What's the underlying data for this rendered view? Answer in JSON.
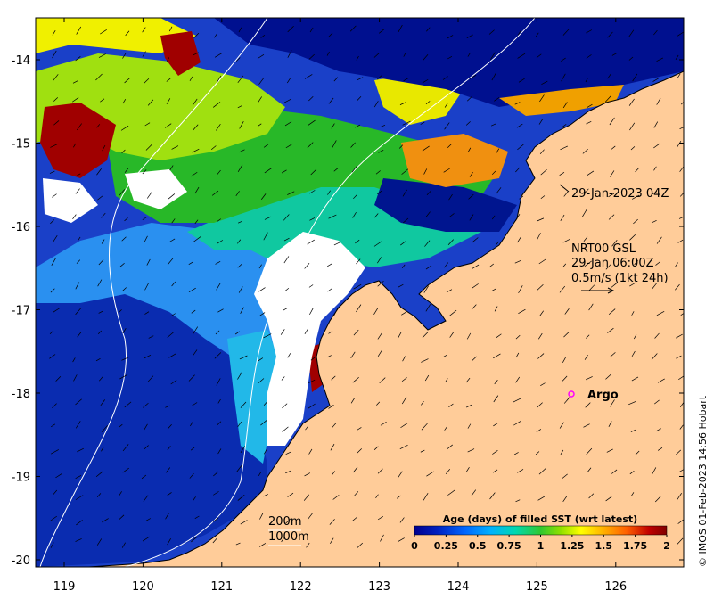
{
  "map": {
    "x_ticks": [
      "119",
      "120",
      "121",
      "122",
      "123",
      "124",
      "125",
      "126"
    ],
    "y_ticks": [
      "-14",
      "-15",
      "-16",
      "-17",
      "-18",
      "-19",
      "-20"
    ]
  },
  "annotations": {
    "pass_time": "29-Jan-2023 04Z",
    "current_source": "NRT00 GSL",
    "current_time": "29-Jan 06:00Z",
    "current_scale": "0.5m/s (1kt 24h)",
    "argo_label": "Argo",
    "contour_200": "200m",
    "contour_1000": "1000m"
  },
  "colorbar": {
    "title": "Age (days) of filled SST (wrt latest)",
    "ticks": [
      "0",
      "0.25",
      "0.5",
      "0.75",
      "1",
      "1.25",
      "1.5",
      "1.75",
      "2"
    ]
  },
  "credit": "© IMOS 01-Feb-2023 14:56 Hobart",
  "colors": {
    "land": "#ffcc99",
    "missing": "#ffffff",
    "argo": "#ff00ff",
    "age_scale": [
      "#00008f",
      "#0020c0",
      "#0066ff",
      "#00b0ff",
      "#00d8b0",
      "#30c830",
      "#90e000",
      "#ffff00",
      "#ffb000",
      "#ff6000",
      "#c00000",
      "#800000"
    ]
  }
}
